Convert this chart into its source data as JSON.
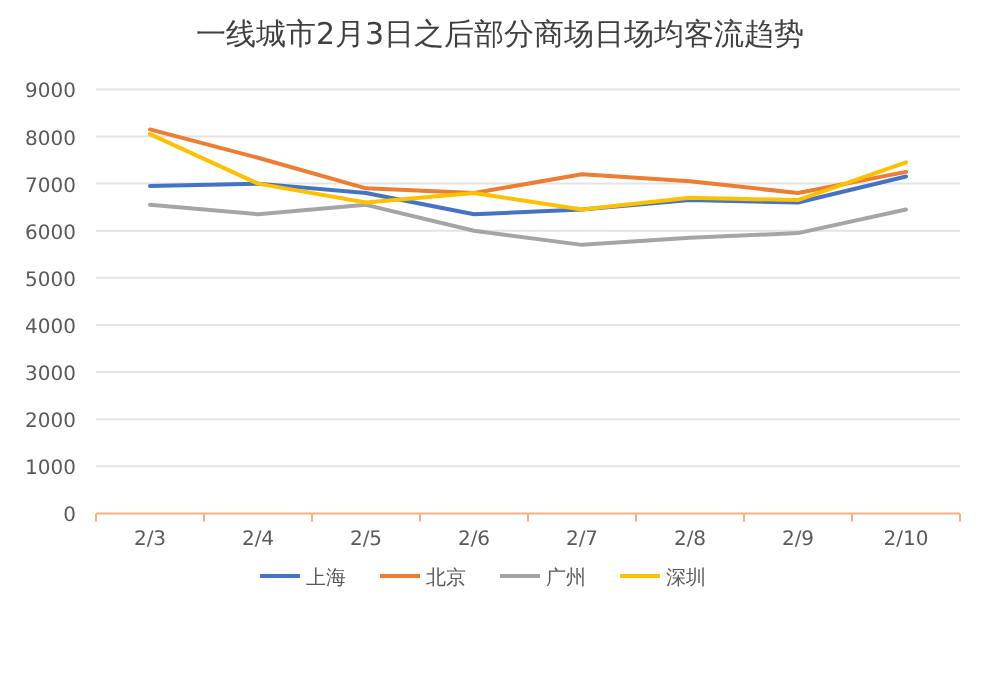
{
  "chart_data": {
    "type": "line",
    "title": "一线城市2月3日之后部分商场日场均客流趋势",
    "categories": [
      "2/3",
      "2/4",
      "2/5",
      "2/6",
      "2/7",
      "2/8",
      "2/9",
      "2/10"
    ],
    "series": [
      {
        "name": "上海",
        "color": "#4472c4",
        "values": [
          6950,
          7000,
          6800,
          6350,
          6450,
          6650,
          6600,
          7150
        ]
      },
      {
        "name": "北京",
        "color": "#ed7d31",
        "values": [
          8150,
          7550,
          6900,
          6800,
          7200,
          7050,
          6800,
          7250
        ]
      },
      {
        "name": "广州",
        "color": "#a5a5a5",
        "values": [
          6550,
          6350,
          6550,
          6000,
          5700,
          5850,
          5950,
          6450
        ]
      },
      {
        "name": "深圳",
        "color": "#ffc000",
        "values": [
          8050,
          7000,
          6600,
          6800,
          6450,
          6700,
          6650,
          7450
        ]
      }
    ],
    "ylim": [
      0,
      9000
    ],
    "yticks": [
      0,
      1000,
      2000,
      3000,
      4000,
      5000,
      6000,
      7000,
      8000,
      9000
    ],
    "grid": "y",
    "legend": "bottom",
    "line_style": "solid",
    "marker": "none"
  }
}
